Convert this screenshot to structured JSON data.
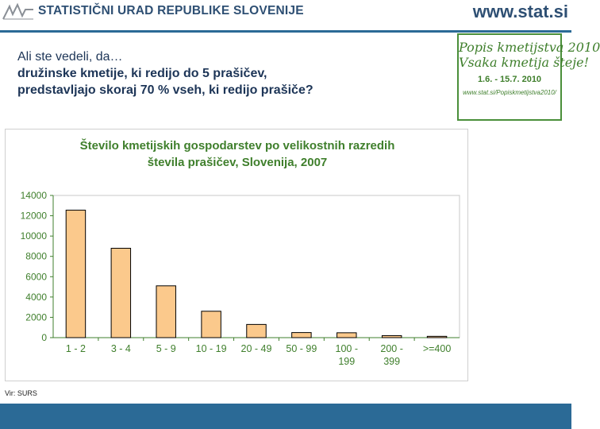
{
  "header": {
    "org_name": "STATISTIČNI URAD REPUBLIKE SLOVENIJE",
    "site_url": "www.stat.si"
  },
  "intro": {
    "line1": "Ali ste vedeli, da…",
    "line2": "družinske kmetije, ki redijo do 5 prašičev,",
    "line3": "predstavljajo skoraj 70 % vseh, ki redijo prašiče?"
  },
  "census_banner": {
    "line1": "Popis kmetijstva 2010",
    "line2": "Vsaka kmetija šteje!",
    "dates": "1.6. - 15.7. 2010",
    "url": "www.stat.si/Popiskmetijstva2010/"
  },
  "chart_data": {
    "type": "bar",
    "title_line1": "Število kmetijskih gospodarstev po velikostnih razredih",
    "title_line2": "števila prašičev, Slovenija, 2007",
    "categories": [
      [
        "1 - 2"
      ],
      [
        "3 - 4"
      ],
      [
        "5 - 9"
      ],
      [
        "10 - 19"
      ],
      [
        "20 - 49"
      ],
      [
        "50 - 99"
      ],
      [
        "100 -",
        "199"
      ],
      [
        "200 -",
        "399"
      ],
      [
        ">=400"
      ]
    ],
    "values": [
      12550,
      8800,
      5100,
      2600,
      1300,
      500,
      480,
      200,
      130
    ],
    "ylim": [
      0,
      14000
    ],
    "yticks": [
      0,
      2000,
      4000,
      6000,
      8000,
      10000,
      12000,
      14000
    ],
    "grid": false,
    "legend": "none",
    "bar_color": "#fbc98c",
    "bar_stroke": "#000000",
    "axis_color": "#3f7f2c",
    "plot_border_color": "#c8c8c8"
  },
  "source": "Vir: SURS",
  "colors": {
    "brand_blue": "#2e4f73",
    "rule_blue": "#2b6a96",
    "green": "#3f7f2c"
  }
}
